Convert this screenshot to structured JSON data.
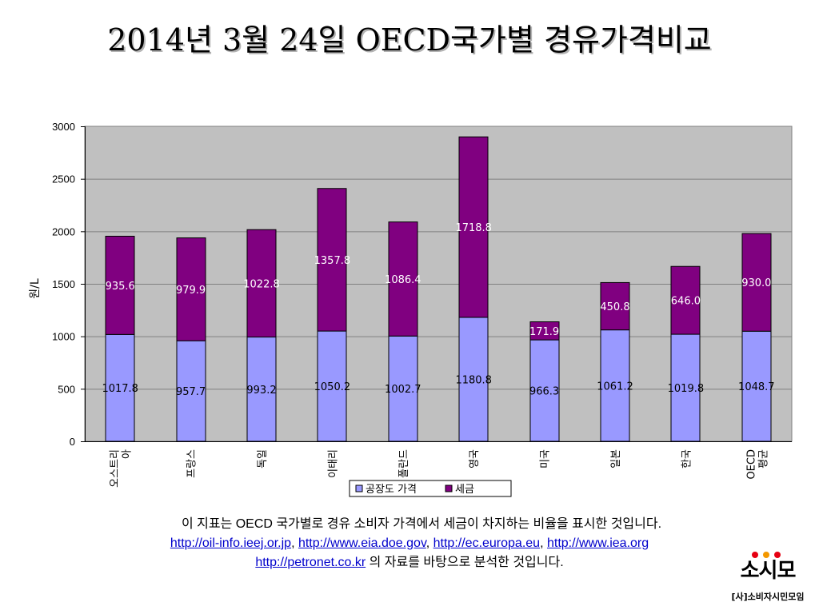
{
  "title": "2014년 3월 24일 OECD국가별 경유가격비교",
  "chart_data": {
    "type": "bar",
    "stacked": true,
    "categories": [
      "오스트리아",
      "프랑스",
      "독일",
      "이태리",
      "폴란드",
      "영국",
      "미국",
      "일본",
      "한국",
      "OECD 평균"
    ],
    "category_lines": [
      [
        "오스트리",
        "아"
      ],
      [
        "프랑스"
      ],
      [
        "독일"
      ],
      [
        "이태리"
      ],
      [
        "폴란드"
      ],
      [
        "영국"
      ],
      [
        "미국"
      ],
      [
        "일본"
      ],
      [
        "한국"
      ],
      [
        "OECD",
        "평균"
      ]
    ],
    "series": [
      {
        "name": "공장도 가격",
        "color": "#9999ff",
        "values": [
          1017.8,
          957.7,
          993.2,
          1050.2,
          1002.7,
          1180.8,
          966.3,
          1061.2,
          1019.8,
          1048.7
        ],
        "labels": [
          "1017.8",
          "957.7",
          "993.2",
          "1050.2",
          "1002.7",
          "1180.8",
          "966.3",
          "1061.2",
          "1019.8",
          "1048.7"
        ]
      },
      {
        "name": "세금",
        "color": "#800080",
        "values": [
          935.6,
          979.9,
          1022.8,
          1357.8,
          1086.4,
          1718.8,
          171.9,
          450.8,
          646.0,
          930.0
        ],
        "labels": [
          "935.6",
          "979.9",
          "1022.8",
          "1357.8",
          "1086.4",
          "1718.8",
          "171.9",
          "450.8",
          "646.0",
          "930.0"
        ]
      }
    ],
    "ylabel": "원/L",
    "ylim": [
      0,
      3000
    ],
    "yticks": [
      0,
      500,
      1000,
      1500,
      2000,
      2500,
      3000
    ],
    "grid": true,
    "plot_background": "#c0c0c0",
    "legend_position": "bottom"
  },
  "notes": {
    "line1": "이 지표는 OECD 국가별로 경유 소비자 가격에서 세금이 차지하는 비율을 표시한 것입니다.",
    "links": [
      "http://oil-info.ieej.or.jp",
      "http://www.eia.doe.gov",
      "http://ec.europa.eu",
      "http://www.iea.org"
    ],
    "separator": ", ",
    "link5": "http://petronet.co.kr",
    "line3_suffix": " 의 자료를 바탕으로 분석한 것입니다."
  },
  "logo": {
    "mark": "소시모",
    "org": "[사]소비자시민모임",
    "dot_colors": [
      "#e60012",
      "#f39800",
      "#e60012"
    ]
  }
}
